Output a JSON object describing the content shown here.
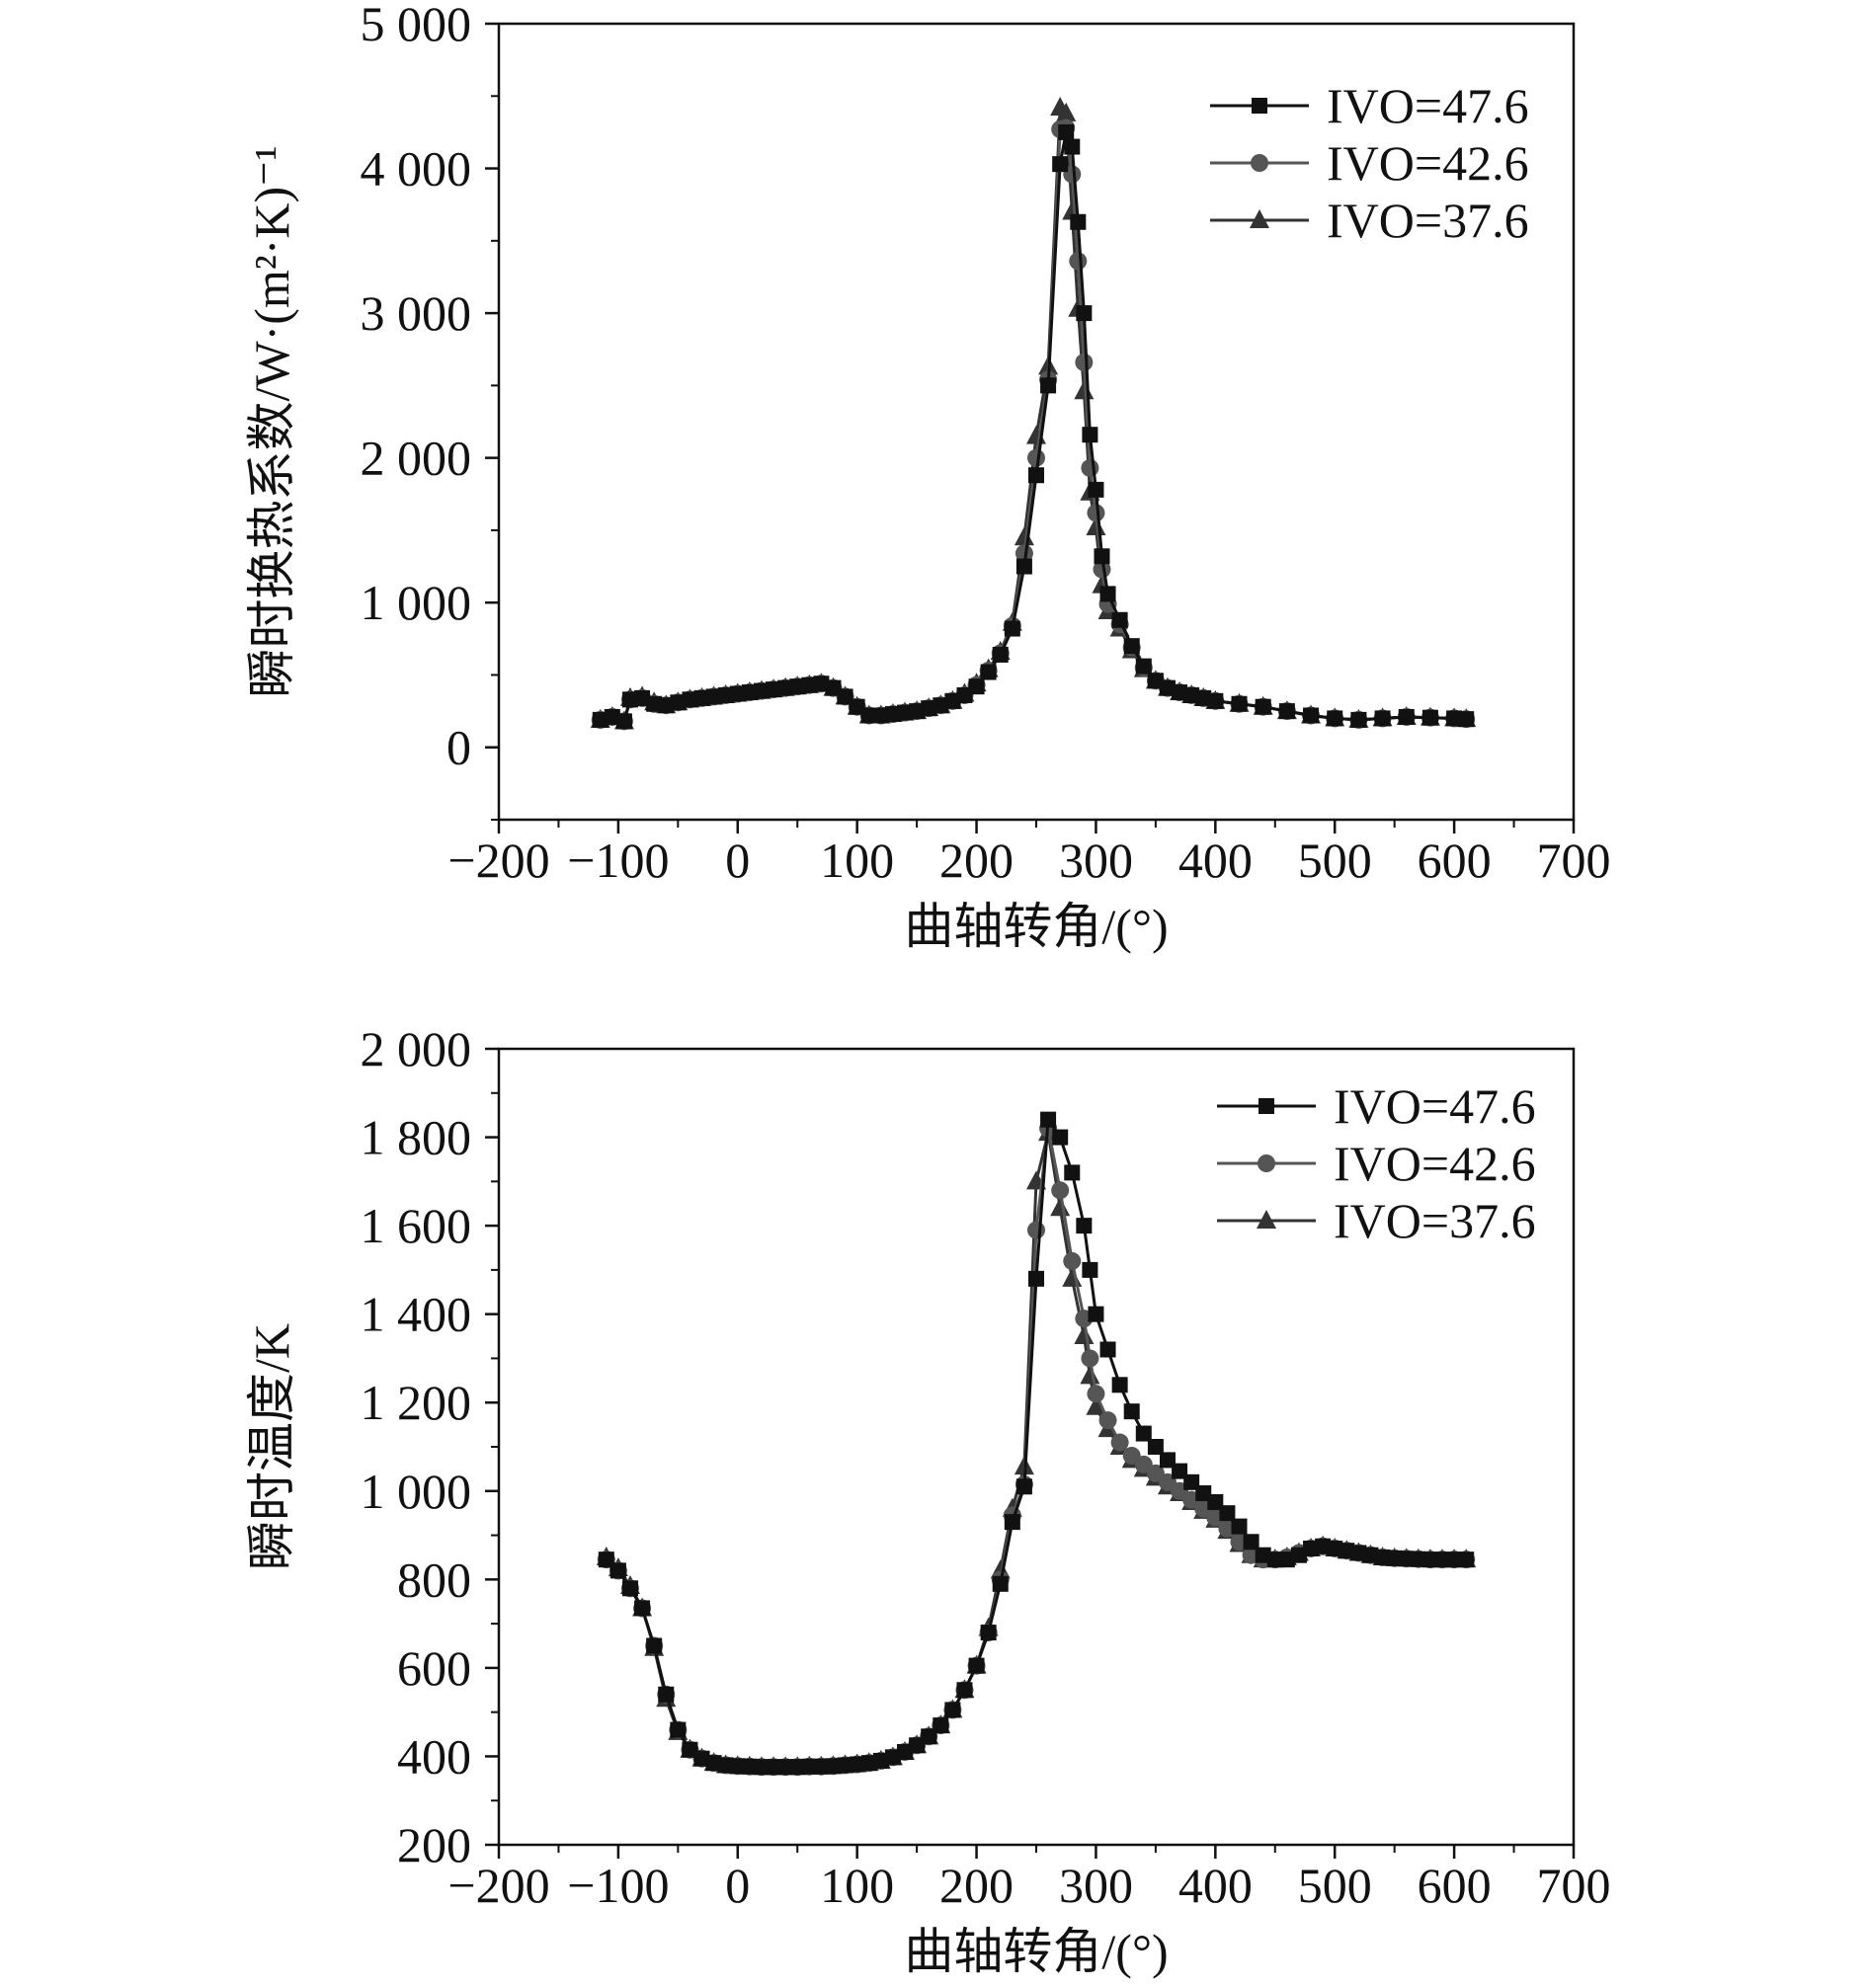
{
  "chart_data": [
    {
      "type": "line",
      "xlabel": "曲轴转角/(°)",
      "ylabel": "瞬时换热系数/W·(m²·K)⁻¹",
      "xlim": [
        -200,
        700
      ],
      "ylim": [
        -500,
        5000
      ],
      "xticks": [
        -200,
        -100,
        0,
        100,
        200,
        300,
        400,
        500,
        600,
        700
      ],
      "xtick_labels": [
        "−200",
        "−100",
        "0",
        "100",
        "200",
        "300",
        "400",
        "500",
        "600",
        "700"
      ],
      "yticks": [
        0,
        1000,
        2000,
        3000,
        4000,
        5000
      ],
      "ytick_labels": [
        "0",
        "1 000",
        "2 000",
        "3 000",
        "4 000",
        "5 000"
      ],
      "grid": false,
      "legend_position": "top-right",
      "x": [
        -115,
        -105,
        -95,
        -90,
        -80,
        -70,
        -60,
        -50,
        -40,
        -30,
        -20,
        -10,
        0,
        10,
        20,
        30,
        40,
        50,
        60,
        70,
        80,
        90,
        100,
        110,
        120,
        130,
        140,
        150,
        160,
        170,
        180,
        190,
        200,
        210,
        220,
        230,
        240,
        250,
        260,
        270,
        275,
        280,
        285,
        290,
        295,
        300,
        305,
        310,
        320,
        330,
        340,
        350,
        360,
        370,
        380,
        390,
        400,
        420,
        440,
        460,
        480,
        500,
        520,
        540,
        560,
        580,
        600,
        610
      ],
      "series": [
        {
          "name": "IVO=47.6",
          "marker": "square",
          "color": "#111111",
          "values": [
            190,
            210,
            180,
            330,
            340,
            300,
            290,
            310,
            330,
            340,
            350,
            360,
            370,
            380,
            390,
            400,
            410,
            420,
            430,
            440,
            410,
            350,
            280,
            220,
            220,
            230,
            240,
            250,
            270,
            290,
            320,
            360,
            420,
            520,
            640,
            820,
            1250,
            1880,
            2500,
            4030,
            4250,
            4150,
            3630,
            3000,
            2160,
            1780,
            1320,
            1060,
            880,
            700,
            560,
            460,
            410,
            380,
            360,
            340,
            320,
            300,
            280,
            250,
            220,
            200,
            190,
            200,
            210,
            205,
            200,
            195
          ]
        },
        {
          "name": "IVO=42.6",
          "marker": "circle",
          "color": "#555555",
          "values": [
            190,
            210,
            180,
            330,
            340,
            300,
            290,
            310,
            330,
            340,
            350,
            360,
            370,
            380,
            390,
            400,
            410,
            420,
            430,
            440,
            410,
            350,
            280,
            220,
            220,
            230,
            240,
            250,
            270,
            290,
            320,
            360,
            430,
            530,
            650,
            840,
            1340,
            2000,
            2540,
            4270,
            4280,
            3960,
            3360,
            2660,
            1930,
            1620,
            1230,
            990,
            850,
            690,
            550,
            460,
            410,
            380,
            360,
            340,
            320,
            300,
            280,
            250,
            220,
            200,
            190,
            200,
            210,
            205,
            200,
            195
          ]
        },
        {
          "name": "IVO=37.6",
          "marker": "triangle",
          "color": "#333333",
          "values": [
            190,
            210,
            180,
            340,
            350,
            310,
            290,
            310,
            330,
            340,
            350,
            360,
            370,
            380,
            390,
            400,
            410,
            420,
            430,
            440,
            410,
            350,
            280,
            220,
            220,
            230,
            240,
            250,
            270,
            290,
            320,
            370,
            440,
            540,
            660,
            860,
            1450,
            2150,
            2630,
            4420,
            4380,
            3700,
            3030,
            2460,
            1760,
            1520,
            1120,
            940,
            820,
            670,
            540,
            460,
            410,
            380,
            360,
            340,
            320,
            300,
            280,
            250,
            220,
            200,
            190,
            200,
            210,
            205,
            200,
            195
          ]
        }
      ]
    },
    {
      "type": "line",
      "xlabel": "曲轴转角/(°)",
      "ylabel": "瞬时温度/K",
      "xlim": [
        -200,
        700
      ],
      "ylim": [
        200,
        2000
      ],
      "xticks": [
        -200,
        -100,
        0,
        100,
        200,
        300,
        400,
        500,
        600,
        700
      ],
      "xtick_labels": [
        "−200",
        "−100",
        "0",
        "100",
        "200",
        "300",
        "400",
        "500",
        "600",
        "700"
      ],
      "yticks": [
        200,
        400,
        600,
        800,
        1000,
        1200,
        1400,
        1600,
        1800,
        2000
      ],
      "ytick_labels": [
        "200",
        "400",
        "600",
        "800",
        "1 000",
        "1 200",
        "1 400",
        "1 600",
        "1 800",
        "2 000"
      ],
      "grid": false,
      "legend_position": "top-right",
      "x": [
        -110,
        -100,
        -90,
        -80,
        -70,
        -60,
        -50,
        -40,
        -30,
        -20,
        -10,
        0,
        10,
        20,
        30,
        40,
        50,
        60,
        70,
        80,
        90,
        100,
        110,
        120,
        130,
        140,
        150,
        160,
        170,
        180,
        190,
        200,
        210,
        220,
        230,
        240,
        250,
        260,
        270,
        280,
        290,
        295,
        300,
        310,
        320,
        330,
        340,
        350,
        360,
        370,
        380,
        390,
        400,
        410,
        420,
        430,
        440,
        450,
        460,
        470,
        480,
        490,
        500,
        510,
        520,
        530,
        540,
        550,
        560,
        570,
        580,
        590,
        600,
        610
      ],
      "series": [
        {
          "name": "IVO=47.6",
          "marker": "square",
          "color": "#111111",
          "values": [
            845,
            820,
            780,
            735,
            650,
            540,
            460,
            415,
            395,
            385,
            380,
            378,
            377,
            376,
            376,
            376,
            376,
            377,
            377,
            378,
            380,
            382,
            385,
            390,
            398,
            410,
            425,
            445,
            470,
            505,
            550,
            605,
            680,
            790,
            930,
            1010,
            1480,
            1840,
            1800,
            1720,
            1600,
            1500,
            1400,
            1320,
            1240,
            1180,
            1130,
            1100,
            1070,
            1045,
            1020,
            995,
            975,
            950,
            920,
            885,
            855,
            845,
            845,
            855,
            870,
            875,
            870,
            865,
            860,
            855,
            850,
            848,
            847,
            846,
            845,
            845,
            845,
            845
          ]
        },
        {
          "name": "IVO=42.6",
          "marker": "circle",
          "color": "#555555",
          "values": [
            845,
            820,
            780,
            735,
            650,
            540,
            460,
            415,
            395,
            385,
            380,
            378,
            377,
            376,
            376,
            376,
            376,
            377,
            377,
            378,
            380,
            382,
            385,
            390,
            398,
            410,
            425,
            445,
            470,
            505,
            550,
            605,
            680,
            800,
            945,
            1015,
            1590,
            1820,
            1680,
            1520,
            1390,
            1300,
            1220,
            1160,
            1110,
            1080,
            1060,
            1040,
            1020,
            1000,
            980,
            960,
            940,
            915,
            885,
            855,
            845,
            845,
            850,
            860,
            870,
            875,
            870,
            865,
            860,
            855,
            850,
            848,
            847,
            846,
            845,
            845,
            845,
            845
          ]
        },
        {
          "name": "IVO=37.6",
          "marker": "triangle",
          "color": "#333333",
          "values": [
            850,
            825,
            785,
            735,
            645,
            530,
            455,
            415,
            395,
            385,
            380,
            378,
            377,
            376,
            376,
            376,
            376,
            377,
            377,
            378,
            380,
            382,
            385,
            390,
            398,
            410,
            425,
            445,
            470,
            505,
            550,
            605,
            690,
            820,
            960,
            1055,
            1700,
            1810,
            1640,
            1480,
            1350,
            1260,
            1190,
            1140,
            1100,
            1070,
            1050,
            1030,
            1010,
            995,
            975,
            955,
            935,
            910,
            880,
            855,
            845,
            845,
            850,
            860,
            870,
            875,
            870,
            865,
            860,
            855,
            850,
            848,
            847,
            846,
            845,
            845,
            845,
            845
          ]
        }
      ]
    }
  ]
}
